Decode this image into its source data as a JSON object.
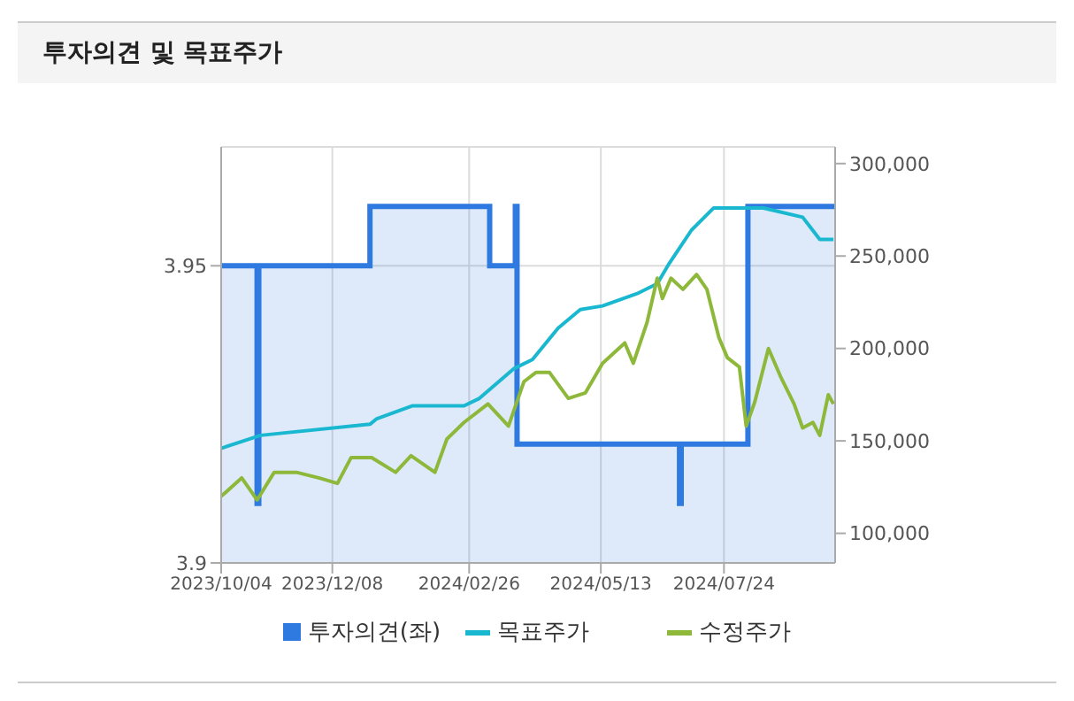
{
  "chart_data": {
    "type": "line",
    "title": "투자의견 및 목표주가",
    "xlim": [
      "2023-10-04",
      "2024-09-27"
    ],
    "xticks": [
      {
        "value": "2023-10-04",
        "label": "2023/10/04"
      },
      {
        "value": "2023-12-08",
        "label": "2023/12/08"
      },
      {
        "value": "2024-02-26",
        "label": "2024/02/26"
      },
      {
        "value": "2024-05-13",
        "label": "2024/05/13"
      },
      {
        "value": "2024-07-24",
        "label": "2024/07/24"
      }
    ],
    "ylim": [
      3.9,
      3.97
    ],
    "yticks": [
      3.9,
      3.95
    ],
    "y2lim": [
      84000,
      309000
    ],
    "y2ticks": [
      {
        "value": 100000,
        "label": "100,000"
      },
      {
        "value": 150000,
        "label": "150,000"
      },
      {
        "value": 200000,
        "label": "200,000"
      },
      {
        "value": 250000,
        "label": "250,000"
      },
      {
        "value": 300000,
        "label": "300,000"
      }
    ],
    "grid": true,
    "legend": "bottom",
    "marker": "none",
    "series": [
      {
        "name": "투자의견(좌)",
        "type": "area",
        "color": "#2f7ae0",
        "x": [
          "2023-10-04",
          "2023-10-25",
          "2023-10-25",
          "2023-10-26",
          "2023-10-26",
          "2023-12-30",
          "2023-12-30",
          "2024-03-09",
          "2024-03-09",
          "2024-03-24",
          "2024-03-24",
          "2024-03-25",
          "2024-03-25",
          "2024-06-28",
          "2024-06-28",
          "2024-06-29",
          "2024-06-29",
          "2024-08-07",
          "2024-08-07",
          "2024-09-27"
        ],
        "values": [
          3.95,
          3.95,
          3.91,
          3.91,
          3.95,
          3.95,
          3.96,
          3.96,
          3.95,
          3.95,
          3.96,
          3.96,
          3.92,
          3.92,
          3.91,
          3.91,
          3.92,
          3.92,
          3.96,
          3.96
        ]
      },
      {
        "name": "목표주가",
        "axis": "y2",
        "color": "#1ab8d0",
        "x": [
          "2023-10-04",
          "2023-10-27",
          "2023-12-30",
          "2024-01-03",
          "2024-01-24",
          "2024-02-23",
          "2024-03-03",
          "2024-03-23",
          "2024-04-03",
          "2024-04-18",
          "2024-05-01",
          "2024-05-14",
          "2024-06-04",
          "2024-06-15",
          "2024-06-22",
          "2024-07-05",
          "2024-07-18",
          "2024-08-16",
          "2024-09-08",
          "2024-09-18",
          "2024-09-26"
        ],
        "values": [
          146000,
          153000,
          159000,
          162000,
          169000,
          169000,
          173000,
          189000,
          194000,
          211000,
          221000,
          223000,
          230000,
          235000,
          246000,
          264000,
          276000,
          276000,
          271000,
          259000,
          259000
        ]
      },
      {
        "name": "수정주가",
        "axis": "y2",
        "color": "#8db83a",
        "x": [
          "2023-10-04",
          "2023-10-16",
          "2023-10-25",
          "2023-11-04",
          "2023-11-17",
          "2023-11-30",
          "2023-12-11",
          "2023-12-19",
          "2023-12-31",
          "2024-01-14",
          "2024-01-23",
          "2024-02-06",
          "2024-02-13",
          "2024-02-23",
          "2024-03-08",
          "2024-03-20",
          "2024-03-29",
          "2024-04-05",
          "2024-04-13",
          "2024-04-24",
          "2024-05-04",
          "2024-05-14",
          "2024-05-27",
          "2024-06-01",
          "2024-06-09",
          "2024-06-15",
          "2024-06-18",
          "2024-06-23",
          "2024-06-30",
          "2024-07-08",
          "2024-07-14",
          "2024-07-21",
          "2024-07-26",
          "2024-08-02",
          "2024-08-06",
          "2024-08-11",
          "2024-08-19",
          "2024-08-26",
          "2024-09-03",
          "2024-09-08",
          "2024-09-14",
          "2024-09-18",
          "2024-09-23",
          "2024-09-26"
        ],
        "values": [
          120000,
          130000,
          118000,
          133000,
          133000,
          130000,
          127000,
          141000,
          141000,
          133000,
          142000,
          133000,
          151000,
          160000,
          170000,
          158000,
          182000,
          187000,
          187000,
          173000,
          176000,
          192000,
          203000,
          192000,
          214000,
          238000,
          227000,
          238000,
          232000,
          240000,
          232000,
          206000,
          195000,
          190000,
          158000,
          171000,
          200000,
          185000,
          170000,
          157000,
          160000,
          153000,
          175000,
          170000
        ]
      }
    ]
  }
}
